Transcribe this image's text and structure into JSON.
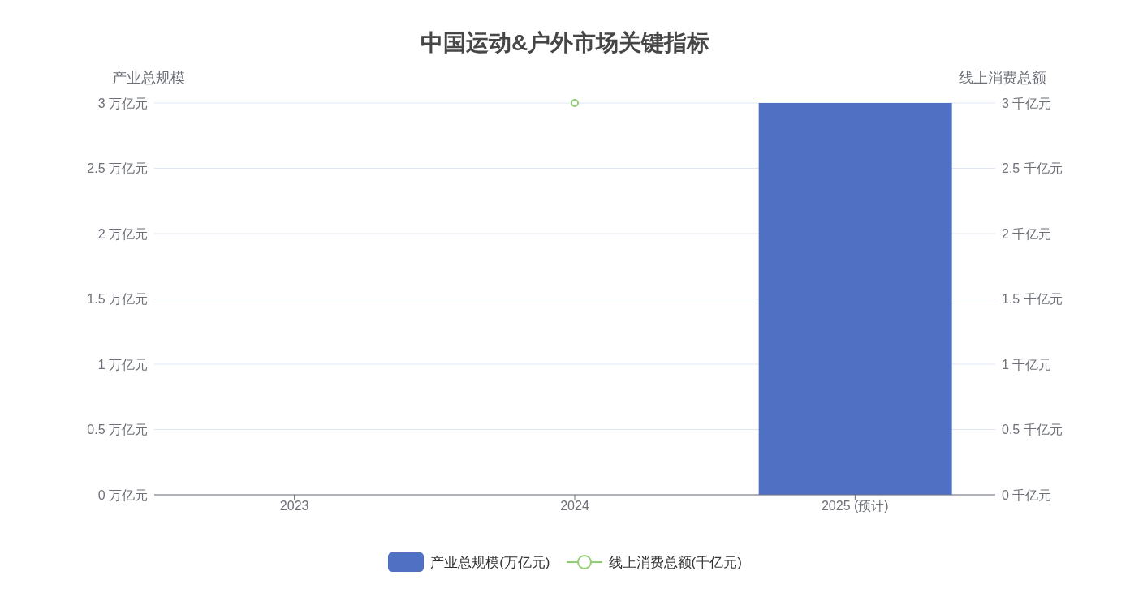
{
  "chart_data": {
    "type": "bar",
    "title": "中国运动&户外市场关键指标",
    "ylabel": "产业总规模",
    "y2label": "线上消费总额",
    "categories": [
      "2023",
      "2024",
      "2025 (预计)"
    ],
    "series": [
      {
        "name": "产业总规模(万亿元)",
        "color": "#5070c4",
        "values": [
          null,
          null,
          3
        ]
      },
      {
        "type": "line",
        "name": "线上消费总额(千亿元)",
        "color": "#91cc75",
        "values": [
          null,
          3,
          null
        ],
        "axis": "y2",
        "marker": "circle",
        "line_style": "solid"
      }
    ],
    "ylim": [
      0,
      3
    ],
    "yticks": [
      {
        "value": 0,
        "label": "0 万亿元"
      },
      {
        "value": 0.5,
        "label": "0.5 万亿元"
      },
      {
        "value": 1,
        "label": "1 万亿元"
      },
      {
        "value": 1.5,
        "label": "1.5 万亿元"
      },
      {
        "value": 2,
        "label": "2 万亿元"
      },
      {
        "value": 2.5,
        "label": "2.5 万亿元"
      },
      {
        "value": 3,
        "label": "3 万亿元"
      }
    ],
    "y2lim": [
      0,
      3
    ],
    "y2ticks": [
      {
        "value": 0,
        "label": "0 千亿元"
      },
      {
        "value": 0.5,
        "label": "0.5 千亿元"
      },
      {
        "value": 1,
        "label": "1 千亿元"
      },
      {
        "value": 1.5,
        "label": "1.5 千亿元"
      },
      {
        "value": 2,
        "label": "2 千亿元"
      },
      {
        "value": 2.5,
        "label": "2.5 千亿元"
      },
      {
        "value": 3,
        "label": "3 千亿元"
      }
    ],
    "grid": "y",
    "legend": "bottom"
  }
}
